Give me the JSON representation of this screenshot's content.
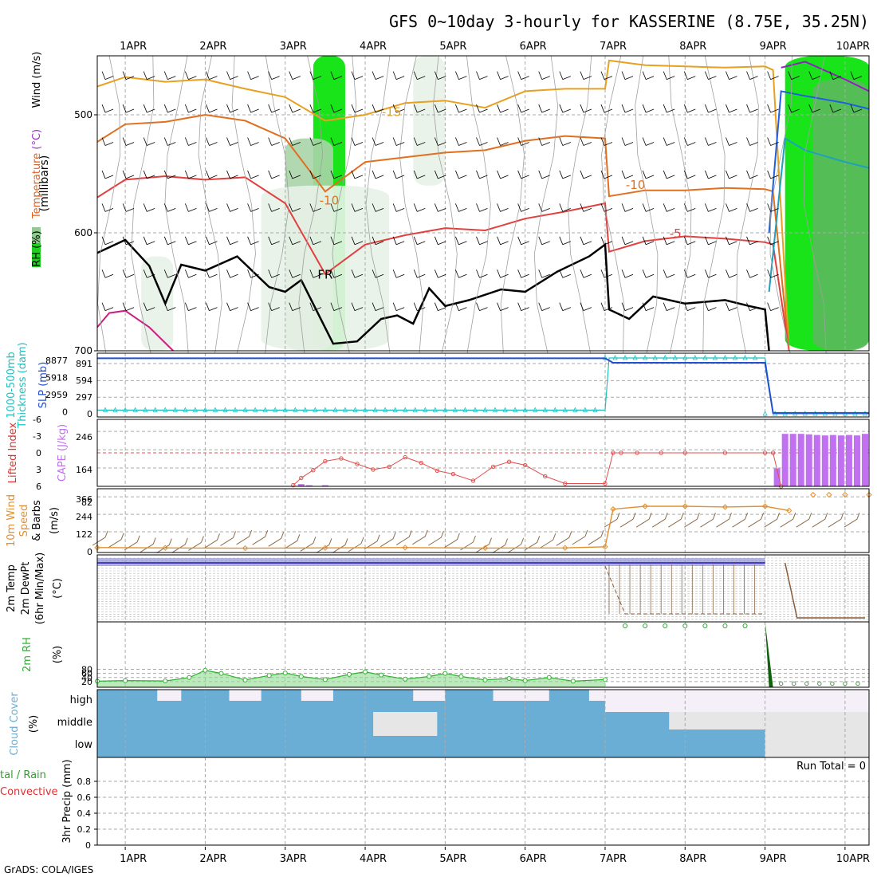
{
  "chart_data": {
    "type": "line",
    "title": "GFS 0~10day 3-hourly for KASSERINE (8.75E, 35.25N)",
    "credit": "GrADS: COLA/IGES",
    "dates": [
      "1APR",
      "2APR",
      "3APR",
      "4APR",
      "5APR",
      "6APR",
      "7APR",
      "8APR",
      "9APR",
      "10APR"
    ],
    "x_range_days": [
      0.65,
      10.3
    ],
    "colors": {
      "rh_light": "#e8f2e8",
      "rh_mid": "#a8d4a8",
      "rh_dark": "#5cb85c",
      "rh_bright": "#00e000",
      "grid": "#aaaaaa",
      "cape": "#c070f0",
      "li": "#e05050",
      "thick": "#20c0c0",
      "slp": "#2050d0",
      "wind": "#e09030",
      "barb": "#8b6b4a",
      "rh2m": "#30b030",
      "cloud": "#6aaed6",
      "cloud_light": "#e6e6e6",
      "cloud_faint": "#f5f0f8"
    },
    "panels": [
      {
        "name": "upper-air",
        "ylabel": "(millibars)",
        "labels": {
          "rh": "RH (%)",
          "temperature": "Temperature ",
          "temp_unit": "(°C)",
          "wind": "Wind (m/s)"
        },
        "yticks": [
          500,
          600,
          700
        ],
        "ylim": [
          450,
          700
        ],
        "contour_labels": [
          {
            "text": "-15",
            "x": 4.33,
            "p": 501,
            "color": "#e8a020"
          },
          {
            "text": "-10",
            "x": 3.55,
            "p": 576,
            "color": "#e07020"
          },
          {
            "text": "-10",
            "x": 7.38,
            "p": 563,
            "color": "#e07020"
          },
          {
            "text": "-5",
            "x": 7.88,
            "p": 604,
            "color": "#e04040"
          },
          {
            "text": "FR",
            "x": 3.5,
            "p": 639,
            "color": "#000000"
          }
        ],
        "temperature_lines": [
          {
            "label": "-15",
            "color": "#e8a020",
            "x": [
              0.65,
              1.0,
              1.5,
              2.0,
              2.5,
              3.0,
              3.5,
              4.0,
              4.5,
              5.0,
              5.5,
              6.0,
              6.5,
              7.0,
              7.05,
              7.5,
              8.0,
              8.5,
              9.0,
              9.1,
              9.3
            ],
            "p": [
              476,
              468,
              472,
              470,
              478,
              485,
              505,
              500,
              490,
              488,
              494,
              480,
              478,
              478,
              454,
              458,
              459,
              460,
              459,
              462,
              700
            ]
          },
          {
            "label": "-10",
            "color": "#e07020",
            "x": [
              0.65,
              1.0,
              1.5,
              2.0,
              2.5,
              3.0,
              3.5,
              4.0,
              4.5,
              5.0,
              5.5,
              6.0,
              6.5,
              7.0,
              7.05,
              7.5,
              8.0,
              8.5,
              9.0,
              9.1,
              9.3
            ],
            "p": [
              523,
              508,
              506,
              500,
              505,
              520,
              565,
              540,
              536,
              532,
              530,
              522,
              518,
              520,
              569,
              564,
              564,
              562,
              563,
              565,
              700
            ]
          },
          {
            "label": "-5",
            "color": "#e04040",
            "x": [
              0.65,
              1.0,
              1.5,
              2.0,
              2.5,
              3.0,
              3.5,
              4.0,
              4.5,
              5.0,
              5.5,
              6.0,
              6.5,
              7.0,
              7.05,
              7.5,
              8.0,
              8.5,
              9.0,
              9.1,
              9.3
            ],
            "p": [
              570,
              555,
              552,
              555,
              553,
              575,
              635,
              610,
              602,
              596,
              598,
              588,
              582,
              575,
              616,
              607,
              603,
              605,
              608,
              610,
              700
            ]
          },
          {
            "label": "0",
            "color": "#cc2080",
            "x": [
              0.65,
              0.8,
              1.0,
              1.3,
              1.6
            ],
            "p": [
              680,
              668,
              666,
              680,
              700
            ]
          },
          {
            "label": "FR",
            "color": "#000000",
            "x": [
              0.65,
              1.0,
              1.3,
              1.5,
              1.7,
              2.0,
              2.4,
              2.8,
              3.0,
              3.2,
              3.6,
              3.9,
              4.2,
              4.4,
              4.6,
              4.8,
              5.0,
              5.3,
              5.7,
              6.0,
              6.4,
              6.8,
              7.0,
              7.05,
              7.3,
              7.6,
              8.0,
              8.5,
              8.8,
              9.0,
              9.05
            ],
            "p": [
              617,
              606,
              628,
              660,
              627,
              632,
              620,
              646,
              650,
              640,
              694,
              692,
              673,
              670,
              677,
              647,
              662,
              657,
              648,
              650,
              633,
              620,
              610,
              665,
              673,
              654,
              660,
              657,
              662,
              665,
              700
            ]
          },
          {
            "label": "blue",
            "color": "#2060e0",
            "x": [
              9.05,
              9.2,
              9.5,
              10.0,
              10.3
            ],
            "p": [
              600,
              480,
              484,
              490,
              495
            ]
          },
          {
            "label": "cyan",
            "color": "#20a0c0",
            "x": [
              9.05,
              9.25,
              9.5,
              10.0,
              10.3
            ],
            "p": [
              650,
              520,
              530,
              540,
              545
            ]
          },
          {
            "label": "purple",
            "color": "#9020c0",
            "x": [
              9.2,
              9.5,
              10.0,
              10.3
            ],
            "p": [
              460,
              455,
              470,
              480
            ]
          }
        ],
        "rh_bands": [
          {
            "x0": 3.35,
            "x1": 3.75,
            "p0": 450,
            "p1": 700,
            "level": "bright"
          },
          {
            "x0": 3.0,
            "x1": 3.6,
            "p0": 520,
            "p1": 700,
            "level": "mid"
          },
          {
            "x0": 2.7,
            "x1": 4.3,
            "p0": 560,
            "p1": 700,
            "level": "light"
          },
          {
            "x0": 9.25,
            "x1": 10.3,
            "p0": 450,
            "p1": 700,
            "level": "bright"
          },
          {
            "x0": 9.6,
            "x1": 10.3,
            "p0": 470,
            "p1": 700,
            "level": "dark"
          },
          {
            "x0": 1.2,
            "x1": 1.6,
            "p0": 620,
            "p1": 700,
            "level": "light"
          },
          {
            "x0": 4.6,
            "x1": 5.0,
            "p0": 450,
            "p1": 560,
            "level": "light"
          }
        ]
      },
      {
        "name": "slp-thickness",
        "ylabel_a": "1000-500mb",
        "ylabel_b": "Thickness (dam)",
        "ylabel_c": "SLP (mb)",
        "left_ticks": [
          "8877",
          "5918",
          "2959",
          "0"
        ],
        "right_ticks": [
          "891",
          "594",
          "297",
          "0"
        ],
        "ylim": [
          0,
          985
        ],
        "thickness": {
          "x": [
            0.65,
            7.0,
            7.05,
            9.0,
            9.1,
            10.3
          ],
          "y": [
            65,
            65,
            985,
            985,
            0,
            0
          ]
        },
        "slp": {
          "x": [
            0.65,
            7.0,
            7.1,
            9.0,
            9.1,
            10.3
          ],
          "y": [
            980,
            980,
            900,
            900,
            15,
            15
          ]
        }
      },
      {
        "name": "lifted-index-cape",
        "ylabel_a": "Lifted Index",
        "ylabel_b": "CAPE (J/kg)",
        "left_ticks": [
          "-6",
          "-3",
          "0",
          "3",
          "6"
        ],
        "right_ticks": [
          "246",
          "164",
          "82"
        ],
        "li": {
          "x": [
            3.1,
            3.2,
            3.35,
            3.5,
            3.7,
            3.9,
            4.1,
            4.3,
            4.5,
            4.7,
            4.9,
            5.1,
            5.35,
            5.6,
            5.8,
            6.0,
            6.25,
            6.5,
            7.0,
            7.1,
            7.2,
            7.4,
            7.7,
            8.0,
            8.5,
            9.0,
            9.1,
            9.2
          ],
          "y": [
            5.8,
            4.5,
            3.1,
            1.5,
            1.0,
            2.0,
            3.0,
            2.5,
            0.8,
            1.8,
            3.2,
            3.8,
            5.0,
            2.5,
            1.6,
            2.2,
            4.2,
            5.5,
            5.5,
            0,
            0,
            0,
            0,
            0,
            0,
            0,
            0,
            6
          ]
        },
        "cape": {
          "x": [
            3.2,
            3.3,
            3.5,
            9.15,
            9.25,
            9.35,
            9.45,
            9.55,
            9.65,
            9.75,
            9.85,
            9.95,
            10.05,
            10.15,
            10.25
          ],
          "y": [
            10,
            5,
            5,
            80,
            235,
            235,
            235,
            233,
            230,
            228,
            230,
            228,
            230,
            228,
            235
          ]
        }
      },
      {
        "name": "10m-wind",
        "ylabel_a": "10m Wind",
        "ylabel_b": "Speed",
        "ylabel_c": "& Barbs",
        "ylabel_d": "(m/s)",
        "yticks": [
          "366",
          "244",
          "122",
          "0"
        ],
        "speed": {
          "x": [
            0.65,
            1.5,
            2.5,
            3.5,
            4.5,
            5.5,
            6.5,
            7.0,
            7.1,
            7.5,
            8.0,
            8.5,
            9.0,
            9.3
          ],
          "y": [
            12,
            10,
            8,
            10,
            12,
            9,
            10,
            18,
            280,
            300,
            300,
            295,
            300,
            270
          ]
        },
        "speed_tail": {
          "x": [
            9.6,
            9.8,
            10.0,
            10.3
          ],
          "y": [
            380,
            380,
            380,
            380
          ]
        }
      },
      {
        "name": "2m-temp",
        "ylabel_a": "2m Temp",
        "ylabel_b": "2m DewPt",
        "ylabel_c": "(6hr Min/Max)",
        "ylabel_d": "(°C)"
      },
      {
        "name": "2m-rh",
        "ylabel_a": "2m RH",
        "ylabel_b": "(%)",
        "yticks": [
          "80",
          "60",
          "40",
          "20"
        ],
        "rh": {
          "x": [
            0.65,
            1.0,
            1.5,
            1.8,
            2.0,
            2.2,
            2.5,
            2.8,
            3.0,
            3.2,
            3.5,
            3.8,
            4.0,
            4.2,
            4.5,
            4.8,
            5.0,
            5.2,
            5.5,
            5.8,
            6.0,
            6.3,
            6.6,
            7.0
          ],
          "y": [
            22,
            25,
            23,
            40,
            75,
            60,
            28,
            50,
            62,
            45,
            30,
            55,
            68,
            52,
            32,
            45,
            60,
            45,
            28,
            35,
            25,
            40,
            22,
            30
          ]
        }
      },
      {
        "name": "cloud-cover",
        "ylabel_a": "Cloud Cover",
        "ylabel_b": "(%)",
        "levels": [
          "high",
          "middle",
          "low"
        ]
      },
      {
        "name": "precip",
        "ylabel_a": "3hr Precip (mm)",
        "legend_a": "tal / Rain",
        "legend_b": "Convective",
        "yticks": [
          "0.8",
          "0.6",
          "0.4",
          "0.2",
          "0"
        ],
        "run_total": "Run Total = 0"
      }
    ]
  }
}
